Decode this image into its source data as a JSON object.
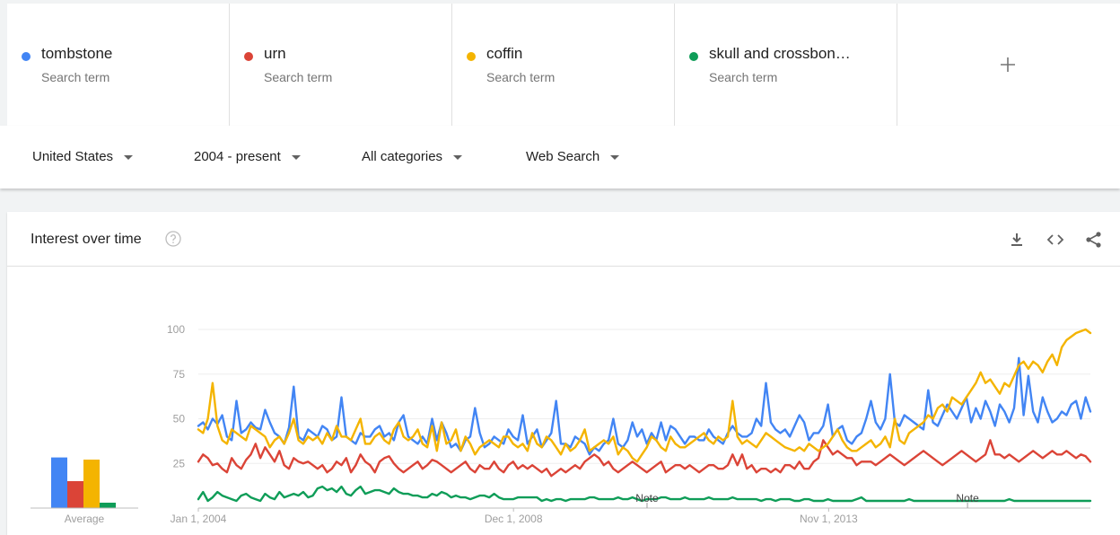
{
  "terms": [
    {
      "name": "tombstone",
      "sub": "Search term",
      "color": "#4285f4"
    },
    {
      "name": "urn",
      "sub": "Search term",
      "color": "#db4437"
    },
    {
      "name": "coffin",
      "sub": "Search term",
      "color": "#f4b400"
    },
    {
      "name": "skull and crossbon…",
      "sub": "Search term",
      "color": "#0f9d58"
    }
  ],
  "add_term_icon": "plus-icon",
  "filters": {
    "region": "United States",
    "time": "2004 - present",
    "category": "All categories",
    "property": "Web Search"
  },
  "panel": {
    "title": "Interest over time",
    "icons": [
      "help-icon",
      "download-icon",
      "embed-icon",
      "share-icon"
    ]
  },
  "chart_data": {
    "type": "line",
    "x_start": "2004-01",
    "x_end": "2017-12",
    "frequency": "monthly",
    "x_tick_labels": [
      "Jan 1, 2004",
      "Dec 1, 2008",
      "Nov 1, 2013"
    ],
    "y_ticks": [
      25,
      50,
      75,
      100
    ],
    "ylim": [
      0,
      100
    ],
    "grid": true,
    "notes": [
      {
        "text": "Note",
        "date": "2011-01"
      },
      {
        "text": "Note",
        "date": "2016-01"
      }
    ],
    "averages_label": "Average",
    "averages": [
      {
        "series": "tombstone",
        "value": 47
      },
      {
        "series": "urn",
        "value": 25
      },
      {
        "series": "coffin",
        "value": 45
      },
      {
        "series": "skull and crossbon…",
        "value": 5
      }
    ],
    "series": [
      {
        "name": "tombstone",
        "color": "#4285f4",
        "values": [
          46,
          48,
          44,
          50,
          47,
          52,
          40,
          38,
          60,
          42,
          44,
          48,
          45,
          44,
          55,
          48,
          42,
          40,
          36,
          45,
          68,
          40,
          38,
          44,
          42,
          40,
          46,
          44,
          38,
          40,
          62,
          40,
          38,
          36,
          42,
          40,
          40,
          44,
          46,
          40,
          42,
          38,
          48,
          52,
          40,
          38,
          36,
          40,
          36,
          50,
          38,
          48,
          42,
          34,
          36,
          32,
          38,
          40,
          56,
          42,
          34,
          36,
          40,
          38,
          36,
          44,
          40,
          38,
          52,
          36,
          40,
          44,
          34,
          38,
          42,
          60,
          36,
          36,
          34,
          40,
          38,
          36,
          30,
          34,
          32,
          36,
          38,
          50,
          36,
          34,
          38,
          48,
          40,
          44,
          36,
          42,
          38,
          48,
          38,
          46,
          44,
          40,
          36,
          40,
          40,
          38,
          38,
          44,
          40,
          38,
          36,
          42,
          46,
          42,
          40,
          40,
          42,
          50,
          46,
          70,
          48,
          44,
          42,
          44,
          40,
          46,
          52,
          48,
          38,
          42,
          42,
          46,
          58,
          40,
          44,
          46,
          38,
          36,
          40,
          42,
          50,
          60,
          48,
          44,
          50,
          75,
          48,
          46,
          52,
          50,
          48,
          46,
          44,
          66,
          48,
          46,
          52,
          58,
          54,
          50,
          56,
          62,
          48,
          56,
          50,
          60,
          54,
          46,
          58,
          54,
          48,
          56,
          84,
          52,
          74,
          54,
          48,
          62,
          54,
          48,
          50,
          54,
          52,
          58,
          60,
          50,
          62,
          54
        ]
      },
      {
        "name": "urn",
        "color": "#db4437",
        "values": [
          26,
          30,
          28,
          24,
          25,
          22,
          20,
          28,
          24,
          22,
          27,
          30,
          36,
          28,
          34,
          30,
          26,
          32,
          24,
          22,
          28,
          26,
          25,
          26,
          24,
          22,
          24,
          20,
          22,
          26,
          24,
          28,
          20,
          24,
          30,
          26,
          24,
          20,
          26,
          28,
          29,
          25,
          22,
          20,
          22,
          24,
          26,
          22,
          24,
          27,
          26,
          24,
          22,
          20,
          22,
          24,
          26,
          22,
          20,
          24,
          22,
          22,
          26,
          22,
          20,
          24,
          26,
          22,
          24,
          22,
          24,
          22,
          20,
          22,
          18,
          20,
          22,
          20,
          22,
          24,
          22,
          26,
          28,
          30,
          28,
          24,
          26,
          22,
          20,
          22,
          24,
          26,
          24,
          22,
          20,
          22,
          24,
          26,
          20,
          22,
          24,
          24,
          22,
          24,
          22,
          20,
          22,
          24,
          24,
          22,
          22,
          24,
          30,
          24,
          30,
          22,
          24,
          20,
          22,
          22,
          20,
          22,
          20,
          24,
          24,
          22,
          26,
          22,
          22,
          26,
          28,
          38,
          34,
          30,
          32,
          30,
          28,
          28,
          24,
          26,
          26,
          26,
          24,
          26,
          28,
          30,
          28,
          26,
          24,
          26,
          28,
          30,
          32,
          30,
          28,
          26,
          24,
          26,
          28,
          30,
          32,
          30,
          28,
          26,
          28,
          30,
          38,
          30,
          30,
          28,
          30,
          28,
          26,
          28,
          30,
          32,
          30,
          28,
          30,
          32,
          30,
          30,
          32,
          30,
          28,
          30,
          29,
          26
        ]
      },
      {
        "name": "coffin",
        "color": "#f4b400",
        "values": [
          44,
          42,
          50,
          70,
          46,
          38,
          36,
          44,
          42,
          40,
          38,
          46,
          44,
          42,
          40,
          34,
          38,
          40,
          36,
          42,
          50,
          38,
          36,
          40,
          38,
          40,
          36,
          42,
          38,
          46,
          40,
          40,
          38,
          44,
          50,
          36,
          36,
          40,
          42,
          38,
          36,
          44,
          48,
          40,
          38,
          40,
          44,
          36,
          34,
          46,
          32,
          48,
          36,
          38,
          44,
          32,
          40,
          36,
          30,
          34,
          36,
          38,
          36,
          34,
          40,
          40,
          36,
          34,
          36,
          32,
          42,
          36,
          34,
          40,
          38,
          34,
          30,
          36,
          32,
          34,
          38,
          44,
          32,
          34,
          36,
          38,
          36,
          40,
          30,
          34,
          32,
          28,
          26,
          30,
          34,
          40,
          38,
          34,
          32,
          40,
          36,
          34,
          34,
          36,
          38,
          40,
          42,
          38,
          36,
          40,
          38,
          40,
          60,
          40,
          36,
          38,
          36,
          34,
          38,
          42,
          40,
          38,
          36,
          34,
          33,
          32,
          34,
          32,
          36,
          34,
          32,
          34,
          36,
          40,
          44,
          38,
          34,
          32,
          32,
          34,
          36,
          38,
          34,
          36,
          40,
          34,
          50,
          38,
          36,
          42,
          44,
          46,
          48,
          52,
          50,
          56,
          58,
          54,
          62,
          60,
          58,
          62,
          66,
          70,
          76,
          70,
          72,
          68,
          64,
          70,
          68,
          74,
          80,
          82,
          78,
          82,
          80,
          76,
          82,
          86,
          80,
          90,
          94,
          96,
          98,
          99,
          100,
          98
        ]
      },
      {
        "name": "skull and crossbon…",
        "color": "#0f9d58",
        "values": [
          5,
          9,
          4,
          6,
          9,
          7,
          6,
          5,
          4,
          7,
          8,
          6,
          5,
          4,
          8,
          6,
          5,
          9,
          6,
          7,
          8,
          7,
          9,
          6,
          7,
          11,
          12,
          10,
          11,
          9,
          12,
          8,
          7,
          10,
          12,
          8,
          9,
          10,
          10,
          9,
          8,
          11,
          9,
          8,
          8,
          7,
          7,
          6,
          6,
          8,
          7,
          9,
          8,
          6,
          7,
          6,
          6,
          5,
          6,
          7,
          7,
          6,
          8,
          6,
          5,
          5,
          5,
          6,
          6,
          6,
          6,
          6,
          4,
          5,
          4,
          5,
          5,
          4,
          5,
          5,
          5,
          5,
          6,
          6,
          5,
          5,
          5,
          5,
          6,
          5,
          5,
          6,
          5,
          4,
          5,
          5,
          5,
          6,
          6,
          5,
          5,
          5,
          6,
          5,
          5,
          5,
          5,
          6,
          5,
          5,
          5,
          5,
          6,
          5,
          5,
          5,
          5,
          5,
          4,
          5,
          5,
          4,
          5,
          5,
          5,
          4,
          4,
          5,
          5,
          4,
          4,
          4,
          5,
          4,
          4,
          4,
          4,
          4,
          5,
          6,
          4,
          4,
          4,
          4,
          4,
          4,
          4,
          4,
          4,
          5,
          4,
          4,
          4,
          4,
          4,
          4,
          4,
          4,
          4,
          4,
          4,
          4,
          4,
          4,
          4,
          4,
          4,
          4,
          4,
          4,
          5,
          4,
          4,
          4,
          4,
          4,
          4,
          4,
          4,
          4,
          4,
          4,
          4,
          4,
          4,
          4,
          4,
          4
        ]
      }
    ]
  }
}
